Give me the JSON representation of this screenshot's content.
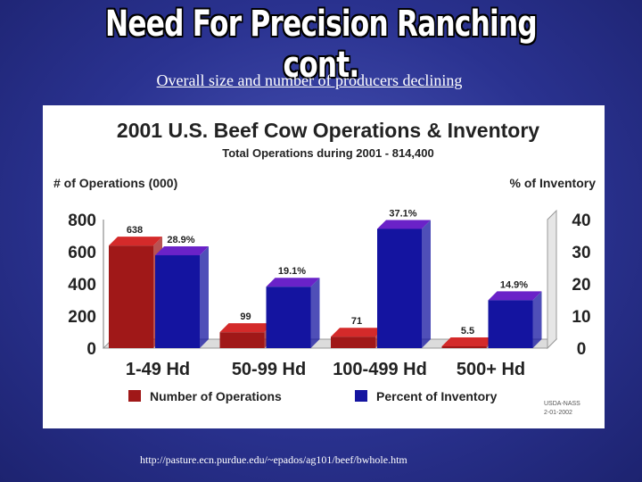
{
  "slide": {
    "title": "Need For Precision Ranching cont.",
    "subtitle": "Overall size and number of producers declining",
    "source_url": "http://pasture.ecn.purdue.edu/~epados/ag101/beef/bwhole.htm"
  },
  "chart_data": {
    "type": "bar",
    "title": "2001 U.S. Beef Cow Operations & Inventory",
    "subtitle": "Total Operations during 2001 - 814,400",
    "ylabel_left": "# of Operations (000)",
    "ylabel_right": "% of Inventory",
    "ylim_left": [
      0,
      800
    ],
    "ylim_right": [
      0,
      40
    ],
    "yticks_left": [
      "800",
      "600",
      "400",
      "200",
      "0"
    ],
    "yticks_right": [
      "40",
      "30",
      "20",
      "10",
      "0"
    ],
    "categories": [
      "1-49 Hd",
      "50-99 Hd",
      "100-499 Hd",
      "500+ Hd"
    ],
    "series": [
      {
        "name": "Number of Operations",
        "axis": "left",
        "values": [
          638,
          99,
          71,
          5.5
        ],
        "labels": [
          "638",
          "99",
          "71",
          "5.5"
        ],
        "color": "#a01818",
        "top_color": "#d42a2a"
      },
      {
        "name": "Percent of Inventory",
        "axis": "right",
        "values": [
          28.9,
          19.1,
          37.1,
          14.9
        ],
        "labels": [
          "28.9%",
          "19.1%",
          "37.1%",
          "14.9%"
        ],
        "color": "#1414a0",
        "top_color": "#6a22c8"
      }
    ],
    "legend_position": "bottom",
    "source_note": [
      "USDA-NASS",
      "2-01-2002"
    ],
    "grid": false
  }
}
